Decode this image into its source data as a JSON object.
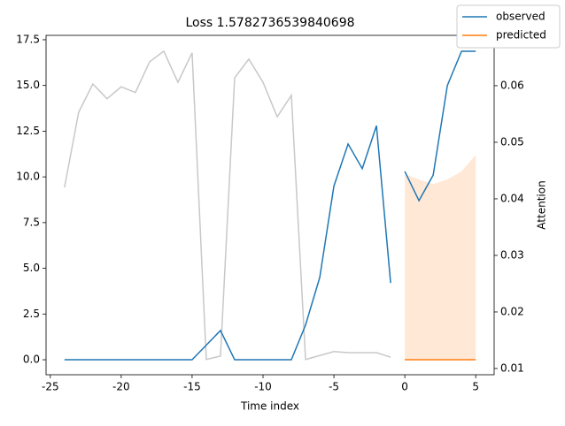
{
  "chart_data": {
    "type": "line",
    "title": "Loss 1.5782736539840698",
    "x_label": "Time index",
    "y2_label": "Attention",
    "xlim": [
      -25.3,
      6.3
    ],
    "xticks": [
      -25,
      -20,
      -15,
      -10,
      -5,
      0,
      5
    ],
    "ylim": [
      -0.82,
      17.74
    ],
    "yticks": [
      {
        "value": 0,
        "label": "0.0"
      },
      2.5,
      {
        "value": 5,
        "label": "5.0"
      },
      7.5,
      {
        "value": 10,
        "label": "10.0"
      },
      12.5,
      {
        "value": 15,
        "label": "15.0"
      },
      17.5
    ],
    "y2lim": [
      0.0089,
      0.0689
    ],
    "y2ticks": [
      0.01,
      0.02,
      0.03,
      0.04,
      0.05,
      0.06
    ],
    "legend": "upper right",
    "series": [
      {
        "name": "observed",
        "color": "#1f77b4",
        "x": [
          -24,
          -23,
          -22,
          -21,
          -20,
          -19,
          -18,
          -17,
          -16,
          -15,
          -14,
          -13,
          -12,
          -11,
          -10,
          -9,
          -8,
          -7,
          -6,
          -5,
          -4,
          -3,
          -2,
          -1
        ],
        "values": [
          0,
          0,
          0,
          0,
          0,
          0,
          0,
          0,
          0,
          0,
          0.8,
          1.6,
          0,
          0,
          0,
          0,
          0,
          1.9,
          4.5,
          9.5,
          11.8,
          10.45,
          12.8,
          4.2
        ]
      },
      {
        "name": "predicted",
        "color": "#ff7f0e",
        "x": [
          0,
          1,
          2,
          3,
          4,
          5
        ],
        "values": [
          0,
          0,
          0,
          0,
          0,
          0
        ]
      }
    ],
    "observed_target": {
      "x": [
        0,
        1,
        2,
        3,
        4,
        5
      ],
      "values": [
        10.3,
        8.7,
        10.1,
        15.0,
        16.87,
        16.87
      ]
    },
    "band": {
      "color": "#ffe8d6",
      "x": [
        0,
        1,
        2,
        3,
        4,
        5
      ],
      "lower": [
        0,
        0,
        0,
        0,
        0,
        0
      ],
      "upper": [
        10.15,
        9.86,
        9.6,
        9.86,
        10.3,
        11.2
      ]
    },
    "attention": {
      "color": "#c8c8c8",
      "axis": "y2",
      "x": [
        -24,
        -23,
        -22,
        -21,
        -20,
        -19,
        -18,
        -17,
        -16,
        -15,
        -14,
        -13,
        -12,
        -11,
        -10,
        -9,
        -8,
        -7,
        -6,
        -5,
        -4,
        -3,
        -2,
        -1
      ],
      "values": [
        0.042,
        0.0553,
        0.0603,
        0.0577,
        0.0598,
        0.0588,
        0.0642,
        0.0661,
        0.0606,
        0.0658,
        0.0116,
        0.0122,
        0.0614,
        0.0647,
        0.0606,
        0.0545,
        0.0583,
        0.0116,
        0.0123,
        0.013,
        0.0128,
        0.0128,
        0.0128,
        0.012
      ]
    }
  }
}
